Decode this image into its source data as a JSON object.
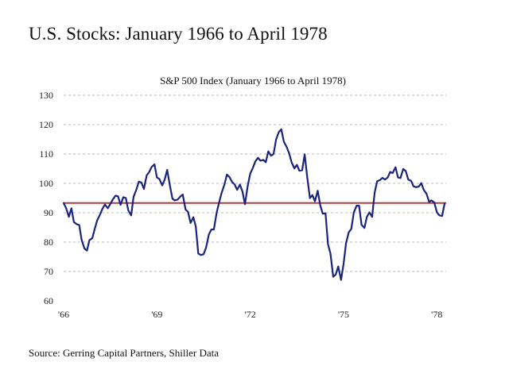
{
  "page": {
    "title": "U.S. Stocks:  January 1966 to April 1978",
    "source": "Source: Gerring Capital Partners, Shiller Data"
  },
  "colors": {
    "series": "#1a237e",
    "reference_line": "#b23a3a",
    "grid": "#bbbbbb"
  },
  "chart_data": {
    "type": "line",
    "title": "S&P 500 Index (January 1966 to April 1978)",
    "xlabel": "",
    "ylabel": "",
    "x_ticks": [
      {
        "label": "'66",
        "t": 1966.0
      },
      {
        "label": "'69",
        "t": 1969.0
      },
      {
        "label": "'72",
        "t": 1972.0
      },
      {
        "label": "'75",
        "t": 1975.0
      },
      {
        "label": "'78",
        "t": 1978.0
      }
    ],
    "y_ticks": [
      60,
      70,
      80,
      90,
      100,
      110,
      120,
      130
    ],
    "xlim": [
      1966.0,
      1978.3
    ],
    "ylim": [
      60,
      130
    ],
    "grid": true,
    "grid_axis": "y",
    "reference_line": {
      "y": 93.3
    },
    "series": [
      {
        "values": [
          [
            1966.0,
            93.3
          ],
          [
            1966.08,
            91.6
          ],
          [
            1966.17,
            88.6
          ],
          [
            1966.25,
            91.5
          ],
          [
            1966.33,
            86.8
          ],
          [
            1966.42,
            86.1
          ],
          [
            1966.5,
            85.8
          ],
          [
            1966.58,
            80.7
          ],
          [
            1966.67,
            77.8
          ],
          [
            1966.75,
            77.1
          ],
          [
            1966.83,
            80.7
          ],
          [
            1966.92,
            81.3
          ],
          [
            1967.0,
            84.5
          ],
          [
            1967.08,
            87.4
          ],
          [
            1967.17,
            89.4
          ],
          [
            1967.25,
            91.4
          ],
          [
            1967.33,
            92.8
          ],
          [
            1967.42,
            91.5
          ],
          [
            1967.5,
            93.0
          ],
          [
            1967.58,
            94.5
          ],
          [
            1967.67,
            95.8
          ],
          [
            1967.75,
            95.6
          ],
          [
            1967.83,
            92.7
          ],
          [
            1967.92,
            95.3
          ],
          [
            1968.0,
            95.0
          ],
          [
            1968.08,
            90.8
          ],
          [
            1968.17,
            89.1
          ],
          [
            1968.25,
            95.5
          ],
          [
            1968.33,
            97.6
          ],
          [
            1968.42,
            100.6
          ],
          [
            1968.5,
            100.3
          ],
          [
            1968.58,
            98.1
          ],
          [
            1968.67,
            102.7
          ],
          [
            1968.75,
            103.8
          ],
          [
            1968.83,
            105.6
          ],
          [
            1968.92,
            106.5
          ],
          [
            1969.0,
            102.0
          ],
          [
            1969.08,
            101.5
          ],
          [
            1969.17,
            99.3
          ],
          [
            1969.25,
            101.3
          ],
          [
            1969.33,
            104.6
          ],
          [
            1969.42,
            99.1
          ],
          [
            1969.5,
            94.7
          ],
          [
            1969.58,
            94.2
          ],
          [
            1969.67,
            94.5
          ],
          [
            1969.75,
            95.5
          ],
          [
            1969.83,
            96.2
          ],
          [
            1969.92,
            91.1
          ],
          [
            1970.0,
            90.3
          ],
          [
            1970.08,
            86.5
          ],
          [
            1970.17,
            88.5
          ],
          [
            1970.25,
            85.3
          ],
          [
            1970.33,
            76.1
          ],
          [
            1970.42,
            75.6
          ],
          [
            1970.5,
            75.9
          ],
          [
            1970.58,
            78.1
          ],
          [
            1970.67,
            82.6
          ],
          [
            1970.75,
            84.3
          ],
          [
            1970.83,
            84.3
          ],
          [
            1970.92,
            90.0
          ],
          [
            1971.0,
            93.5
          ],
          [
            1971.08,
            96.8
          ],
          [
            1971.17,
            99.6
          ],
          [
            1971.25,
            103.0
          ],
          [
            1971.33,
            102.2
          ],
          [
            1971.42,
            100.4
          ],
          [
            1971.5,
            99.6
          ],
          [
            1971.58,
            97.8
          ],
          [
            1971.67,
            99.6
          ],
          [
            1971.75,
            97.2
          ],
          [
            1971.83,
            92.9
          ],
          [
            1971.92,
            99.2
          ],
          [
            1972.0,
            103.3
          ],
          [
            1972.08,
            105.2
          ],
          [
            1972.17,
            107.6
          ],
          [
            1972.25,
            108.7
          ],
          [
            1972.33,
            107.7
          ],
          [
            1972.42,
            108.0
          ],
          [
            1972.5,
            107.2
          ],
          [
            1972.58,
            110.9
          ],
          [
            1972.67,
            109.4
          ],
          [
            1972.75,
            110.0
          ],
          [
            1972.83,
            114.9
          ],
          [
            1972.92,
            117.5
          ],
          [
            1973.0,
            118.4
          ],
          [
            1973.08,
            114.2
          ],
          [
            1973.17,
            112.4
          ],
          [
            1973.25,
            110.3
          ],
          [
            1973.33,
            107.2
          ],
          [
            1973.42,
            105.1
          ],
          [
            1973.5,
            106.3
          ],
          [
            1973.58,
            104.3
          ],
          [
            1973.67,
            104.5
          ],
          [
            1973.75,
            109.9
          ],
          [
            1973.83,
            102.3
          ],
          [
            1973.92,
            95.0
          ],
          [
            1974.0,
            96.0
          ],
          [
            1974.08,
            93.9
          ],
          [
            1974.17,
            97.5
          ],
          [
            1974.25,
            92.6
          ],
          [
            1974.33,
            89.7
          ],
          [
            1974.42,
            89.8
          ],
          [
            1974.5,
            79.3
          ],
          [
            1974.58,
            76.1
          ],
          [
            1974.67,
            68.2
          ],
          [
            1974.75,
            69.0
          ],
          [
            1974.83,
            71.7
          ],
          [
            1974.92,
            67.1
          ],
          [
            1975.0,
            72.6
          ],
          [
            1975.08,
            79.6
          ],
          [
            1975.17,
            83.4
          ],
          [
            1975.25,
            84.5
          ],
          [
            1975.33,
            90.1
          ],
          [
            1975.42,
            92.4
          ],
          [
            1975.5,
            92.4
          ],
          [
            1975.58,
            85.9
          ],
          [
            1975.67,
            84.8
          ],
          [
            1975.75,
            88.6
          ],
          [
            1975.83,
            90.1
          ],
          [
            1975.92,
            88.6
          ],
          [
            1976.0,
            96.9
          ],
          [
            1976.08,
            100.7
          ],
          [
            1976.17,
            101.1
          ],
          [
            1976.25,
            101.9
          ],
          [
            1976.33,
            101.3
          ],
          [
            1976.42,
            102.0
          ],
          [
            1976.5,
            103.9
          ],
          [
            1976.58,
            103.5
          ],
          [
            1976.67,
            105.5
          ],
          [
            1976.75,
            102.0
          ],
          [
            1976.83,
            101.8
          ],
          [
            1976.92,
            104.9
          ],
          [
            1977.0,
            104.2
          ],
          [
            1977.08,
            101.3
          ],
          [
            1977.17,
            100.9
          ],
          [
            1977.25,
            99.0
          ],
          [
            1977.33,
            98.7
          ],
          [
            1977.42,
            98.9
          ],
          [
            1977.5,
            100.1
          ],
          [
            1977.58,
            97.8
          ],
          [
            1977.67,
            96.4
          ],
          [
            1977.75,
            93.7
          ],
          [
            1977.83,
            94.2
          ],
          [
            1977.92,
            93.5
          ],
          [
            1978.0,
            90.2
          ],
          [
            1978.08,
            89.1
          ],
          [
            1978.17,
            88.9
          ],
          [
            1978.25,
            93.1
          ]
        ]
      }
    ]
  }
}
